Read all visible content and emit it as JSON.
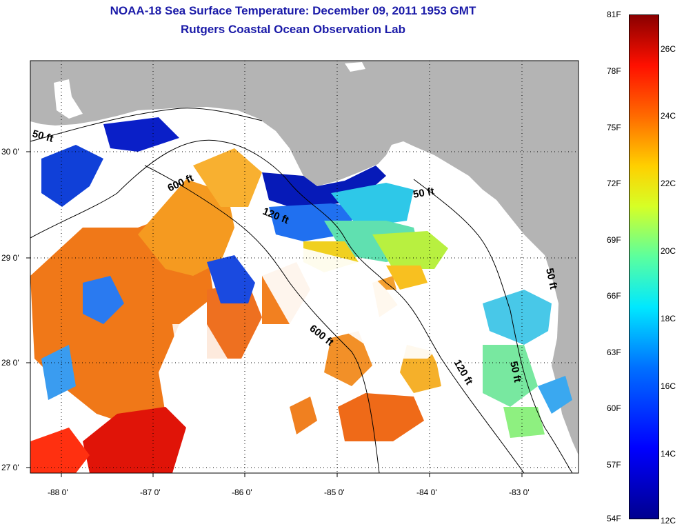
{
  "header": {
    "title": "NOAA-18 Sea Surface Temperature:  December 09, 2011 1953 GMT",
    "subtitle": "Rutgers Coastal Ocean Observation Lab"
  },
  "map": {
    "lat_labels": [
      "30 0'",
      "29 0'",
      "28 0'",
      "27 0'"
    ],
    "lon_labels": [
      "-88 0'",
      "-87 0'",
      "-86 0'",
      "-85 0'",
      "-84 0'",
      "-83 0'"
    ],
    "contour_labels": [
      "50 ft",
      "600 ft",
      "120 ft",
      "50 ft",
      "600 ft",
      "120 ft",
      "50 ft",
      "50 ft"
    ],
    "colors": {
      "land": "#b4b4b4",
      "nodata": "#ffffff",
      "cold": "#0a1fc8",
      "warm": "#f06a10",
      "hot": "#e01000"
    }
  },
  "colorbar": {
    "fahrenheit": [
      "81F",
      "78F",
      "75F",
      "72F",
      "69F",
      "66F",
      "63F",
      "60F",
      "57F",
      "54F"
    ],
    "celsius": [
      "26C",
      "24C",
      "22C",
      "20C",
      "18C",
      "16C",
      "14C",
      "12C"
    ],
    "range_c": [
      12,
      27.2
    ],
    "range_f": [
      54,
      81
    ]
  }
}
